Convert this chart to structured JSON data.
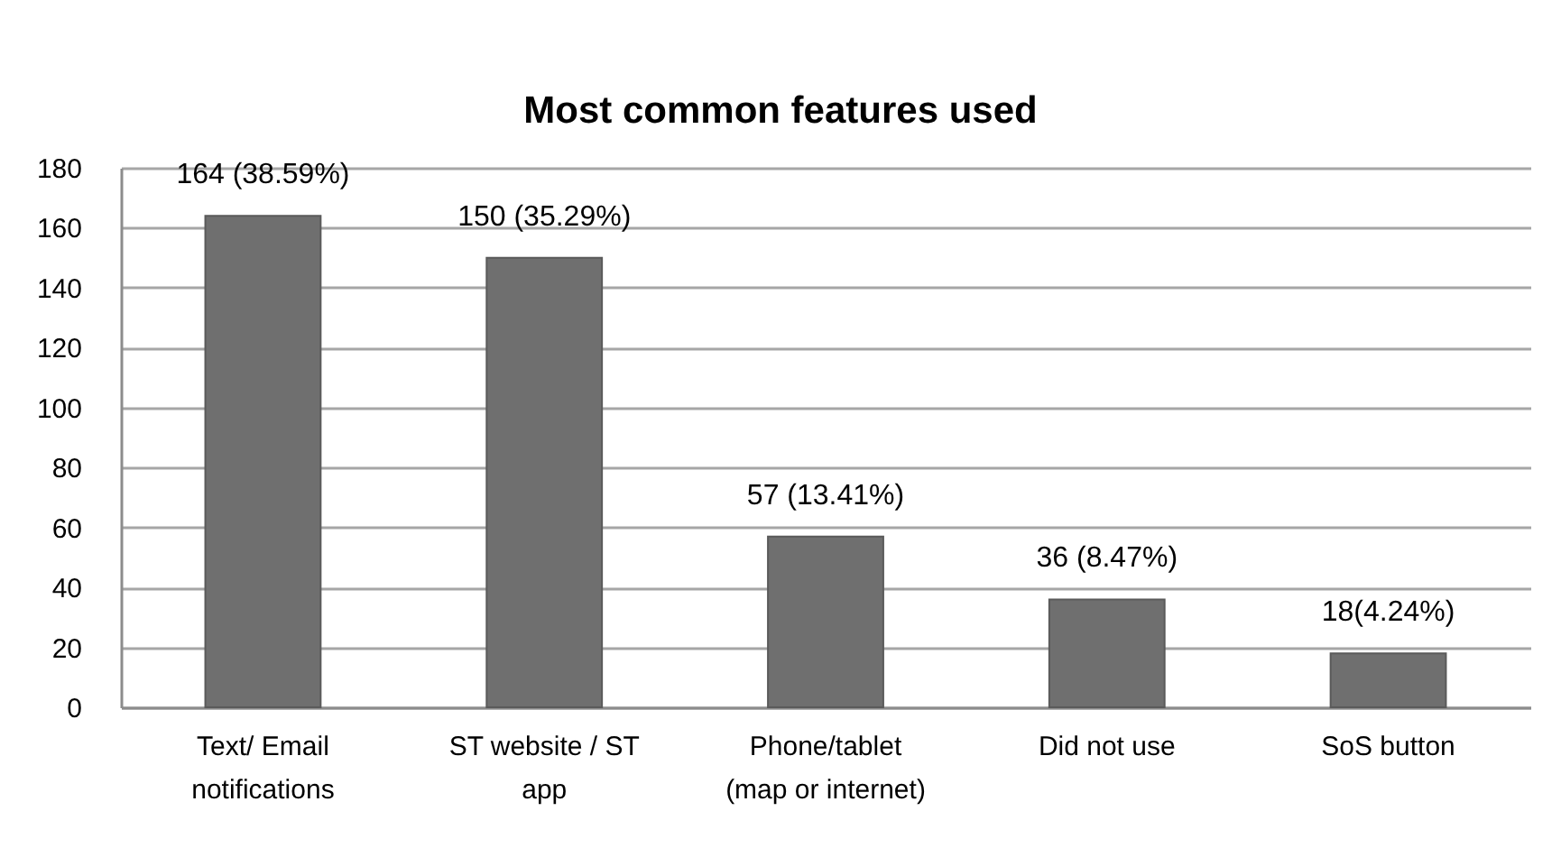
{
  "chart_data": {
    "type": "bar",
    "title": "Most common  features used",
    "categories": [
      "Text/ Email notifications",
      "ST website / ST app",
      "Phone/tablet (map or internet)",
      "Did not use",
      "SoS button"
    ],
    "values": [
      164,
      150,
      57,
      36,
      18
    ],
    "value_labels": [
      "164 (38.59%)",
      "150 (35.29%)",
      "57 (13.41%)",
      "36 (8.47%)",
      "18(4.24%)"
    ],
    "color": "#6f6f6f",
    "ylim": [
      0,
      180
    ],
    "yticks": [
      0,
      20,
      40,
      60,
      80,
      100,
      120,
      140,
      160,
      180
    ],
    "grid": "y"
  }
}
